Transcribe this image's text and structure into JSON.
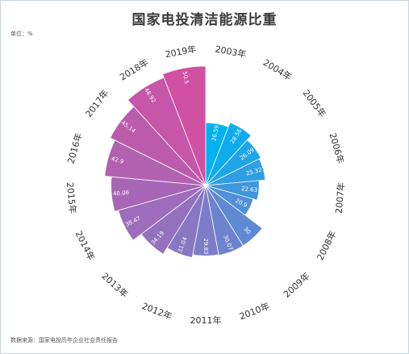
{
  "unit_text": "单位：%",
  "source_text": "数据来源：国家电投历年企业社会责任报告",
  "chart_data": {
    "type": "bar",
    "subtype": "polar-rose (radial bar)",
    "title": "国家电投清洁能源比重",
    "categories": [
      "2003年",
      "2004年",
      "2005年",
      "2006年",
      "2007年",
      "2008年",
      "2009年",
      "2010年",
      "2011年",
      "2012年",
      "2013年",
      "2014年",
      "2015年",
      "2016年",
      "2017年",
      "2018年",
      "2019年"
    ],
    "values": [
      26.59,
      28.56,
      26.09,
      25.32,
      22.63,
      20.9,
      30,
      30.07,
      29.83,
      31.04,
      34.19,
      38.47,
      40.06,
      42.9,
      45.14,
      48.92,
      50.5
    ],
    "ylim": [
      0,
      50.5
    ],
    "start_direction": "north",
    "orientation": "clockwise",
    "grid": false,
    "legend": "none",
    "colors": {
      "start": "#00b2f2",
      "middle": "#7e7cc8",
      "end": "#d050a2",
      "value_label": "#ffffff",
      "category_label": "#333333"
    }
  }
}
